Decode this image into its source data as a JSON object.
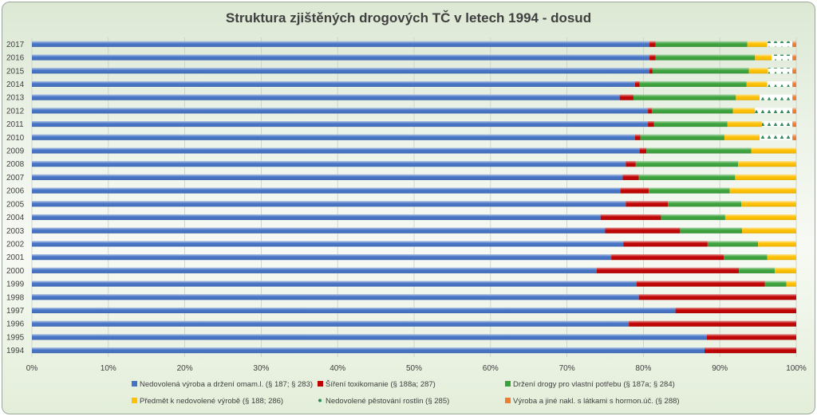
{
  "chart_data": {
    "type": "bar",
    "orientation": "horizontal",
    "stacked": "percent",
    "title": "Struktura zjištěných drogových TČ v letech 1994 - dosud",
    "xlim": [
      0,
      100
    ],
    "x_ticks": [
      "0%",
      "10%",
      "20%",
      "30%",
      "40%",
      "50%",
      "60%",
      "70%",
      "80%",
      "90%",
      "100%"
    ],
    "categories": [
      "2017",
      "2016",
      "2015",
      "2014",
      "2013",
      "2012",
      "2011",
      "2010",
      "2009",
      "2008",
      "2007",
      "2006",
      "2005",
      "2004",
      "2003",
      "2002",
      "2001",
      "2000",
      "1999",
      "1998",
      "1997",
      "1996",
      "1995",
      "1994"
    ],
    "series": [
      {
        "name": "Nedovolená výroba a držení omam.l. (§ 187; § 283)",
        "color": "#4472c4",
        "values": [
          80.8,
          80.8,
          80.8,
          78.9,
          76.9,
          80.6,
          80.6,
          78.9,
          79.5,
          77.7,
          77.3,
          77.0,
          77.7,
          74.4,
          75.0,
          77.4,
          75.8,
          73.9,
          79.1,
          79.4,
          84.2,
          78.1,
          88.3,
          88.0
        ]
      },
      {
        "name": "Šíření toxikomanie (§ 188a; 287)",
        "color": "#c00000",
        "values": [
          0.8,
          0.8,
          0.4,
          0.6,
          1.8,
          0.5,
          0.8,
          0.7,
          0.9,
          1.3,
          2.1,
          3.7,
          5.5,
          7.9,
          9.8,
          11.0,
          14.7,
          18.6,
          16.8,
          20.6,
          15.8,
          21.9,
          11.7,
          12.0
        ]
      },
      {
        "name": "Držení drogy pro vlastní potřebu (§ 187a; § 284)",
        "color": "#3aa23a",
        "values": [
          12.0,
          13.0,
          12.6,
          14.0,
          13.4,
          10.6,
          9.6,
          11.0,
          13.7,
          13.4,
          12.6,
          10.6,
          9.6,
          8.4,
          8.1,
          6.6,
          5.7,
          4.7,
          2.8,
          0,
          0,
          0,
          0,
          0
        ]
      },
      {
        "name": "Předmět k nedovolené výrobě (§ 188; 286)",
        "color": "#ffc000",
        "values": [
          2.6,
          2.2,
          2.5,
          2.7,
          3.1,
          2.9,
          4.5,
          4.6,
          5.9,
          7.6,
          8.0,
          8.7,
          7.2,
          9.3,
          7.1,
          5.0,
          3.8,
          2.8,
          1.3,
          0,
          0,
          0,
          0,
          0
        ]
      },
      {
        "name": "Nedovolené pěstování rostlin (§ 285)",
        "color": "#2e8b57",
        "values": [
          3.3,
          2.7,
          3.2,
          3.3,
          4.3,
          4.9,
          4.0,
          4.3,
          0,
          0,
          0,
          0,
          0,
          0,
          0,
          0,
          0,
          0,
          0,
          0,
          0,
          0,
          0,
          0
        ]
      },
      {
        "name": "Výroba a jiné nakl. s látkami s hormon.úč. (§ 288)",
        "color": "#ed7d31",
        "values": [
          0.5,
          0.5,
          0.5,
          0.5,
          0.5,
          0.5,
          0.5,
          0.5,
          0,
          0,
          0,
          0,
          0,
          0,
          0,
          0,
          0,
          0,
          0,
          0,
          0,
          0,
          0,
          0
        ]
      }
    ],
    "legend_position": "bottom"
  }
}
